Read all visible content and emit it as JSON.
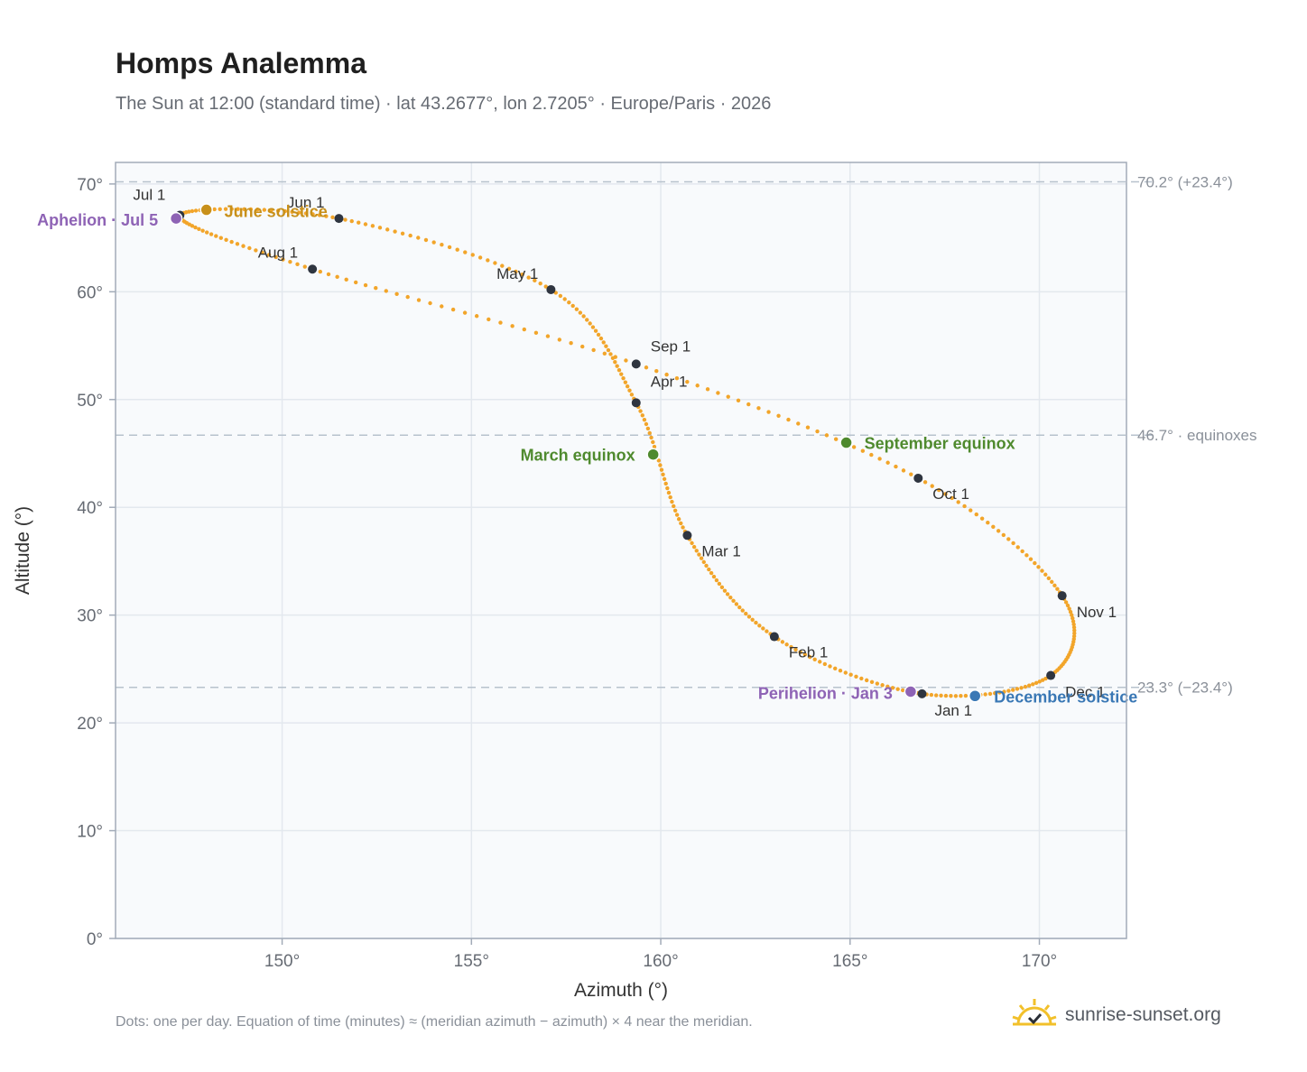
{
  "chart_data": {
    "type": "scatter",
    "title": "Homps Analemma",
    "subtitle": "The Sun at 12:00 (standard time) · lat 43.2677°, lon 2.7205° · Europe/Paris · 2026",
    "xlabel": "Azimuth (°)",
    "ylabel": "Altitude (°)",
    "xlim": [
      145.6,
      172.3
    ],
    "ylim": [
      0,
      72
    ],
    "x_ticks": [
      "150°",
      "155°",
      "160°",
      "165°",
      "170°"
    ],
    "x_tick_values": [
      150,
      155,
      160,
      165,
      170
    ],
    "y_ticks": [
      "0°",
      "10°",
      "20°",
      "30°",
      "40°",
      "50°",
      "60°",
      "70°"
    ],
    "y_tick_values": [
      0,
      10,
      20,
      30,
      40,
      50,
      60,
      70
    ],
    "grid": true,
    "reference_lines": [
      {
        "y": 70.2,
        "label": "70.2° (+23.4°)"
      },
      {
        "y": 46.7,
        "label": "46.7° · equinoxes"
      },
      {
        "y": 23.3,
        "label": "23.3° (−23.4°)"
      }
    ],
    "month_markers": [
      {
        "label": "Jan 1",
        "x": 166.9,
        "y": 22.7
      },
      {
        "label": "Feb 1",
        "x": 163.0,
        "y": 28.0
      },
      {
        "label": "Mar 1",
        "x": 160.7,
        "y": 37.4
      },
      {
        "label": "Apr 1",
        "x": 159.35,
        "y": 49.7
      },
      {
        "label": "May 1",
        "x": 157.1,
        "y": 60.2
      },
      {
        "label": "Jun 1",
        "x": 151.5,
        "y": 66.8
      },
      {
        "label": "Jul 1",
        "x": 147.3,
        "y": 67.1
      },
      {
        "label": "Aug 1",
        "x": 150.8,
        "y": 62.1
      },
      {
        "label": "Sep 1",
        "x": 159.35,
        "y": 53.3
      },
      {
        "label": "Oct 1",
        "x": 166.8,
        "y": 42.7
      },
      {
        "label": "Nov 1",
        "x": 170.6,
        "y": 31.8
      },
      {
        "label": "Dec 1",
        "x": 170.3,
        "y": 24.4
      }
    ],
    "events": [
      {
        "label": "June solstice",
        "x": 148.0,
        "y": 67.6,
        "color": "#c8901a"
      },
      {
        "label": "Aphelion · Jul 5",
        "x": 147.2,
        "y": 66.8,
        "color": "#8e63b5"
      },
      {
        "label": "March equinox",
        "x": 159.8,
        "y": 44.9,
        "color": "#4f8a2e"
      },
      {
        "label": "September equinox",
        "x": 164.9,
        "y": 46.0,
        "color": "#4f8a2e"
      },
      {
        "label": "Perihelion · Jan 3",
        "x": 166.6,
        "y": 22.9,
        "color": "#8e63b5"
      },
      {
        "label": "December solstice",
        "x": 168.3,
        "y": 22.5,
        "color": "#3a78b5"
      }
    ],
    "curve_color": "#f2a52a"
  },
  "footer": {
    "note": "Dots: one per day. Equation of time (minutes) ≈ (meridian azimuth − azimuth) × 4 near the meridian.",
    "brand": "sunrise-sunset.org"
  }
}
